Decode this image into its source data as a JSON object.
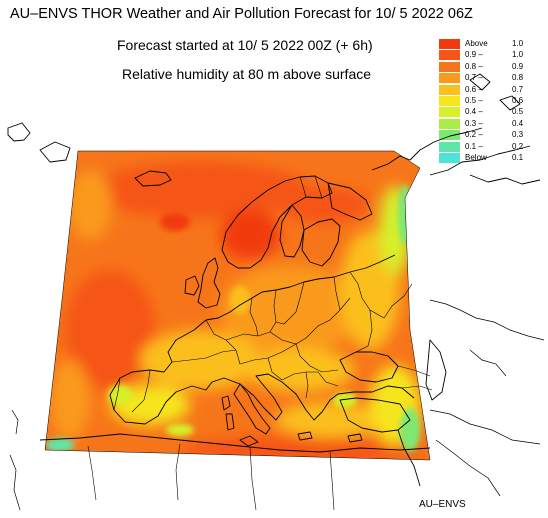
{
  "title": "AU–ENVS THOR Weather and Air Pollution Forecast for 10/ 5 2022  06Z",
  "subtitle_start": "Forecast started at 10/ 5 2022  00Z (+ 6h)",
  "subtitle_field": "Relative humidity at 80 m above surface",
  "legend": [
    {
      "lo": "Above",
      "hi": "1.0",
      "color": "#f23a10"
    },
    {
      "lo": "0.9 –",
      "hi": "1.0",
      "color": "#f55518"
    },
    {
      "lo": "0.8 –",
      "hi": "0.9",
      "color": "#f7751a"
    },
    {
      "lo": "0.7 –",
      "hi": "0.8",
      "color": "#fa9a1c"
    },
    {
      "lo": "0.6 –",
      "hi": "0.7",
      "color": "#fbbf1e"
    },
    {
      "lo": "0.5 –",
      "hi": "0.6",
      "color": "#f6e51f"
    },
    {
      "lo": "0.4 –",
      "hi": "0.5",
      "color": "#d6f02a"
    },
    {
      "lo": "0.3 –",
      "hi": "0.4",
      "color": "#a9ee45"
    },
    {
      "lo": "0.2 –",
      "hi": "0.3",
      "color": "#7ee873"
    },
    {
      "lo": "0.1 –",
      "hi": "0.2",
      "color": "#5ee6a8"
    },
    {
      "lo": "Below",
      "hi": "0.1",
      "color": "#4de3d9"
    }
  ],
  "credit": "AU–ENVS"
}
